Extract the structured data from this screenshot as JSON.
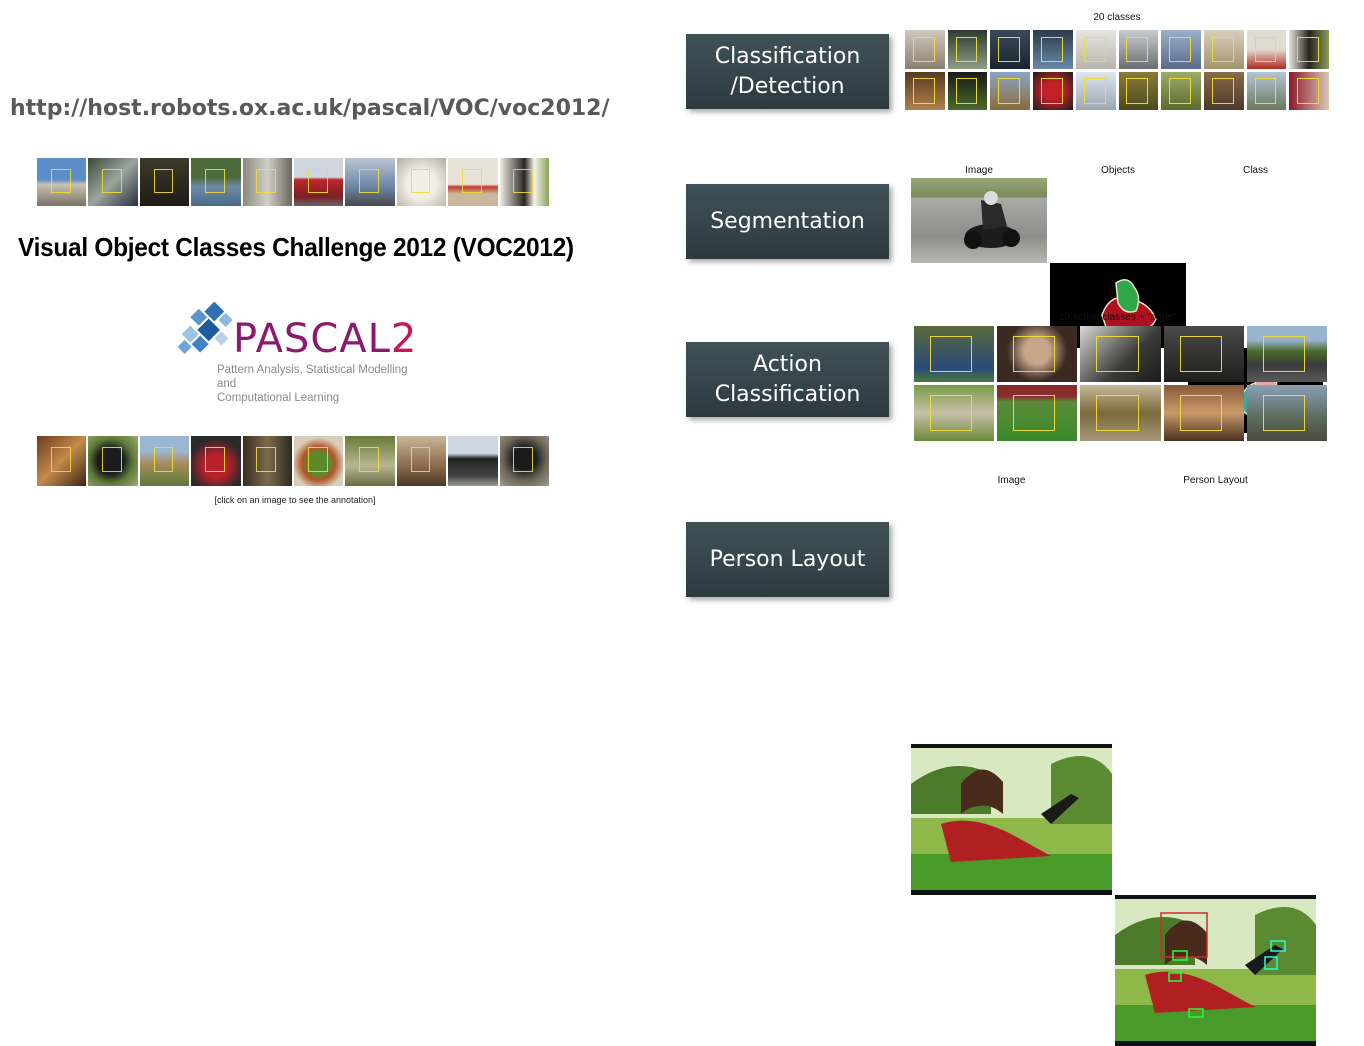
{
  "left": {
    "url": "http://host.robots.ox.ac.uk/pascal/VOC/voc2012/",
    "title": "Visual Object Classes Challenge 2012 (VOC2012)",
    "logo": {
      "word_main": "PASCAL",
      "word_num": "2",
      "subtitle_line1": "Pattern Analysis, Statistical Modelling and",
      "subtitle_line2": "Computational Learning"
    },
    "click_note": "[click on an image to see the annotation]"
  },
  "tasks": {
    "classification": {
      "label": "Classification\n/Detection",
      "caption": "20 classes"
    },
    "segmentation": {
      "label": "Segmentation",
      "captions": [
        "Image",
        "Objects",
        "Class"
      ]
    },
    "action": {
      "label": "Action\nClassification",
      "caption": "10 action classes + \"other\""
    },
    "layout": {
      "label": "Person Layout",
      "captions": [
        "Image",
        "Person Layout"
      ]
    }
  },
  "colors": {
    "label_box": "#34454b",
    "logo_purple": "#8b1a6e",
    "url_gray": "#595959",
    "box_yellow": "#f0dc3c"
  }
}
